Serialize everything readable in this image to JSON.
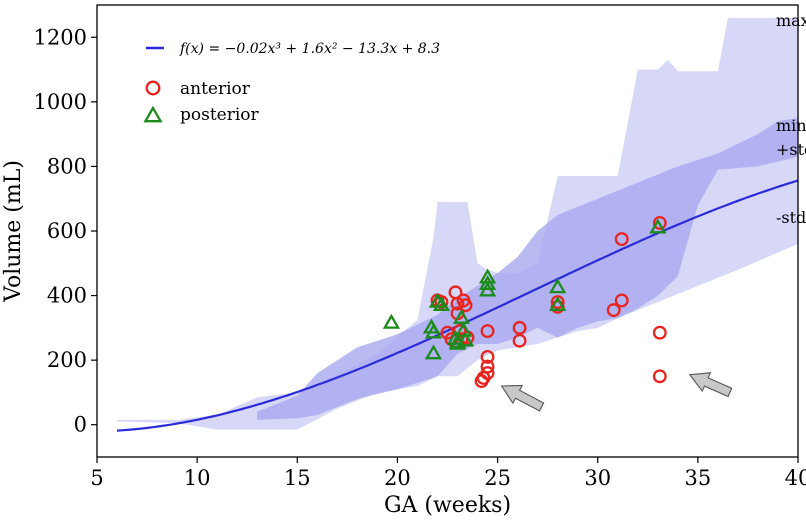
{
  "chart_data": {
    "type": "scatter",
    "xlabel": "GA (weeks)",
    "ylabel": "Volume (mL)",
    "xlim": [
      5,
      40
    ],
    "ylim": [
      -100,
      1300
    ],
    "xticks": [
      5,
      10,
      15,
      20,
      25,
      30,
      35,
      40
    ],
    "yticks": [
      0,
      200,
      400,
      600,
      800,
      1000,
      1200
    ],
    "grid": false,
    "legend_position": "top-left",
    "fit": {
      "label": "f(x) = −0.02x³ + 1.6x² − 13.3x + 8.3",
      "coefficients": [
        -0.02,
        1.6,
        -13.3,
        8.3
      ],
      "x_range": [
        6,
        40
      ],
      "color": "#2b2bd9"
    },
    "bands": [
      {
        "name": "min-max",
        "color": "#c9c9f5",
        "upper": [
          [
            6,
            15
          ],
          [
            9,
            15
          ],
          [
            11,
            30
          ],
          [
            13,
            85
          ],
          [
            15,
            100
          ],
          [
            17,
            155
          ],
          [
            19,
            220
          ],
          [
            21,
            325
          ],
          [
            21.8,
            580
          ],
          [
            22,
            690
          ],
          [
            23.5,
            690
          ],
          [
            24,
            500
          ],
          [
            24.5,
            480
          ],
          [
            25,
            470
          ],
          [
            26,
            470
          ],
          [
            27,
            500
          ],
          [
            28,
            770
          ],
          [
            31,
            770
          ],
          [
            32,
            1100
          ],
          [
            33,
            1100
          ],
          [
            33.5,
            1130
          ],
          [
            34,
            1095
          ],
          [
            36,
            1095
          ],
          [
            36.5,
            1260
          ],
          [
            40,
            1260
          ]
        ],
        "lower": [
          [
            6,
            10
          ],
          [
            9,
            5
          ],
          [
            11,
            -15
          ],
          [
            13,
            -15
          ],
          [
            15,
            -15
          ],
          [
            17,
            50
          ],
          [
            19,
            100
          ],
          [
            20,
            110
          ],
          [
            21,
            120
          ],
          [
            22,
            150
          ],
          [
            23,
            150
          ],
          [
            24,
            200
          ],
          [
            25,
            230
          ],
          [
            26,
            240
          ],
          [
            27,
            250
          ],
          [
            28,
            270
          ],
          [
            29,
            290
          ],
          [
            30,
            300
          ],
          [
            31,
            330
          ],
          [
            33,
            380
          ],
          [
            35,
            430
          ],
          [
            37,
            480
          ],
          [
            40,
            560
          ]
        ]
      },
      {
        "name": "std",
        "color": "#a9a9f0",
        "upper": [
          [
            13,
            40
          ],
          [
            15,
            90
          ],
          [
            16,
            160
          ],
          [
            18,
            240
          ],
          [
            20,
            280
          ],
          [
            22,
            340
          ],
          [
            23,
            390
          ],
          [
            24,
            430
          ],
          [
            25,
            470
          ],
          [
            26,
            520
          ],
          [
            27,
            600
          ],
          [
            28,
            650
          ],
          [
            30,
            700
          ],
          [
            32,
            750
          ],
          [
            34,
            800
          ],
          [
            36,
            840
          ],
          [
            38,
            900
          ],
          [
            39,
            940
          ],
          [
            40,
            950
          ]
        ],
        "lower": [
          [
            13,
            15
          ],
          [
            15,
            20
          ],
          [
            16,
            30
          ],
          [
            18,
            80
          ],
          [
            20,
            110
          ],
          [
            22,
            150
          ],
          [
            23,
            220
          ],
          [
            24,
            250
          ],
          [
            25,
            250
          ],
          [
            26,
            270
          ],
          [
            27,
            300
          ],
          [
            28,
            270
          ],
          [
            29,
            300
          ],
          [
            30,
            320
          ],
          [
            31,
            330
          ],
          [
            32,
            360
          ],
          [
            33,
            400
          ],
          [
            34,
            460
          ],
          [
            35,
            680
          ],
          [
            36,
            790
          ],
          [
            38,
            800
          ],
          [
            40,
            830
          ]
        ]
      }
    ],
    "series": [
      {
        "name": "anterior",
        "marker": "circle",
        "color": "#e8241f",
        "points": [
          [
            22,
            385
          ],
          [
            22.2,
            380
          ],
          [
            22.5,
            285
          ],
          [
            22.7,
            265
          ],
          [
            22.9,
            410
          ],
          [
            23,
            375
          ],
          [
            23,
            345
          ],
          [
            23.1,
            290
          ],
          [
            23.2,
            265
          ],
          [
            23.3,
            385
          ],
          [
            23.4,
            370
          ],
          [
            23.5,
            270
          ],
          [
            24.2,
            135
          ],
          [
            24.3,
            145
          ],
          [
            24.5,
            160
          ],
          [
            24.5,
            180
          ],
          [
            24.5,
            210
          ],
          [
            24.5,
            290
          ],
          [
            26.1,
            300
          ],
          [
            26.1,
            260
          ],
          [
            28,
            380
          ],
          [
            28,
            365
          ],
          [
            30.8,
            355
          ],
          [
            31.2,
            385
          ],
          [
            31.2,
            575
          ],
          [
            33.1,
            625
          ],
          [
            33.1,
            285
          ],
          [
            33.1,
            150
          ]
        ]
      },
      {
        "name": "posterior",
        "marker": "triangle",
        "color": "#1d8a1d",
        "points": [
          [
            19.7,
            315
          ],
          [
            21.7,
            300
          ],
          [
            21.8,
            285
          ],
          [
            21.8,
            220
          ],
          [
            22,
            380
          ],
          [
            22.2,
            370
          ],
          [
            22.9,
            265
          ],
          [
            23,
            255
          ],
          [
            23,
            250
          ],
          [
            23.2,
            330
          ],
          [
            23.3,
            290
          ],
          [
            23.4,
            260
          ],
          [
            24.5,
            455
          ],
          [
            24.5,
            435
          ],
          [
            24.5,
            415
          ],
          [
            28,
            425
          ],
          [
            28,
            370
          ],
          [
            33,
            610
          ]
        ]
      }
    ],
    "annotations": [
      {
        "text": "max",
        "x": 38.9,
        "y": 1235
      },
      {
        "text": "min",
        "x": 38.9,
        "y": 910
      },
      {
        "text": "+std",
        "x": 38.9,
        "y": 835
      },
      {
        "text": "-std",
        "x": 38.9,
        "y": 625
      }
    ],
    "arrows": [
      {
        "tip": [
          25.2,
          120
        ],
        "tail": [
          27.2,
          55
        ],
        "color": "#c8c8c8"
      },
      {
        "tip": [
          34.6,
          155
        ],
        "tail": [
          36.6,
          100
        ],
        "color": "#c8c8c8"
      }
    ]
  }
}
